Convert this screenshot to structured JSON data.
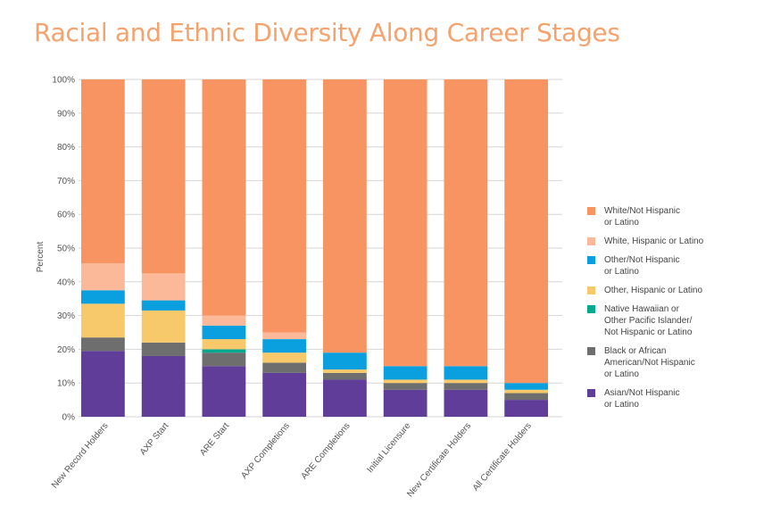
{
  "chart_data": {
    "type": "bar",
    "stacked": true,
    "title": "Racial and Ethnic Diversity Along Career Stages",
    "ylabel": "Percent",
    "ylim": [
      0,
      100
    ],
    "y_ticks": [
      "0%",
      "10%",
      "20%",
      "30%",
      "40%",
      "50%",
      "60%",
      "70%",
      "80%",
      "90%",
      "100%"
    ],
    "grid": true,
    "legend_position": "right",
    "categories": [
      "New Record Holders",
      "AXP Start",
      "ARE Start",
      "AXP Completions",
      "ARE Completions",
      "Initial Licensure",
      "New Certificate Holders",
      "All Certificate Holders"
    ],
    "series": [
      {
        "name": "Asian/Not Hispanic\nor Latino",
        "color": "#5f3d99",
        "values": [
          19.5,
          18,
          15,
          13,
          11,
          8,
          8,
          5
        ]
      },
      {
        "name": "Black or African\nAmerican/Not Hispanic\nor Latino",
        "color": "#6e6e6e",
        "values": [
          4,
          4,
          4,
          3,
          2,
          2,
          2,
          2
        ]
      },
      {
        "name": "Native Hawaiian or\nOther Pacific Islander/\nNot Hispanic or Latino",
        "color": "#00a98f",
        "values": [
          0,
          0,
          1,
          0,
          0,
          0,
          0,
          0
        ]
      },
      {
        "name": "Other, Hispanic or Latino",
        "color": "#f7c96b",
        "values": [
          10,
          9.5,
          3,
          3,
          1,
          1,
          1,
          1
        ]
      },
      {
        "name": "Other/Not Hispanic\nor Latino",
        "color": "#0aa0e0",
        "values": [
          4,
          3,
          4,
          4,
          5,
          4,
          4,
          2
        ]
      },
      {
        "name": "White, Hispanic or Latino",
        "color": "#fbb99a",
        "values": [
          8,
          8,
          3,
          2,
          0,
          0,
          0,
          0
        ]
      },
      {
        "name": "White/Not Hispanic\nor Latino",
        "color": "#f79462",
        "values": [
          54.5,
          57.5,
          70,
          75,
          81,
          85,
          85,
          90
        ]
      }
    ]
  }
}
